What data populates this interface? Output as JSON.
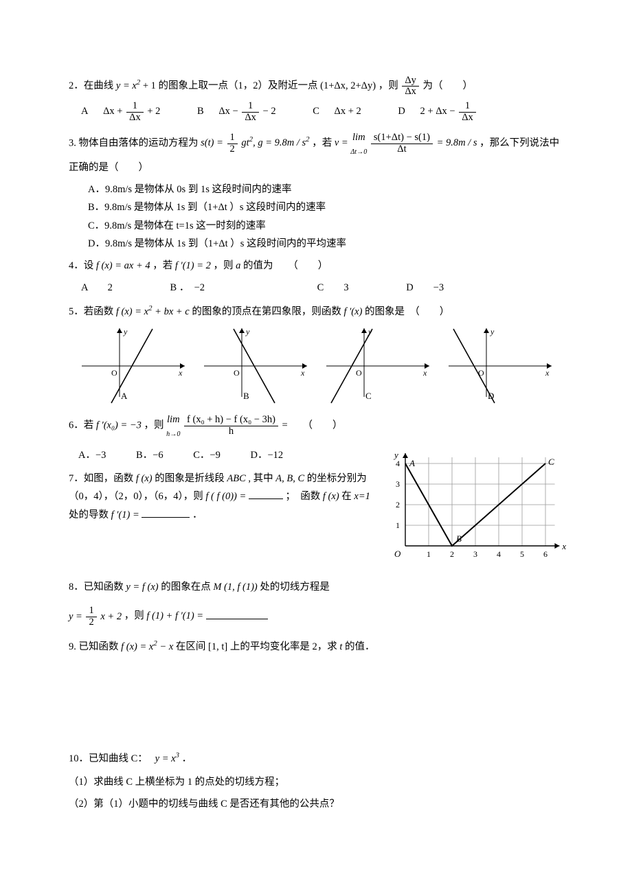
{
  "q2": {
    "text_a": "2．在曲线 ",
    "text_b": " 的图象上取一点（1，2）及附近一点 ",
    "text_c": " ，则 ",
    "text_d": " 为（　　）",
    "curve_lhs": "y",
    "curve_rhs_a": "x",
    "curve_sup": "2",
    "curve_tail": " + 1",
    "pt": "(1+Δx, 2+Δy)",
    "ratio_num": "Δy",
    "ratio_den": "Δx",
    "opts": {
      "A": "A",
      "A_rhs": "Δx + ",
      "A_frac_num": "1",
      "A_frac_den": "Δx",
      "A_tail": " + 2",
      "B": "B",
      "B_rhs": "Δx − ",
      "B_frac_num": "1",
      "B_frac_den": "Δx",
      "B_tail": " − 2",
      "C": "C",
      "C_rhs": "Δx + 2",
      "D": "D",
      "D_rhs": "2 + Δx − ",
      "D_frac_num": "1",
      "D_frac_den": "Δx"
    }
  },
  "q3": {
    "text_a": "3. 物体自由落体的运动方程为 ",
    "text_b": " ，若 ",
    "text_c": " ，那么下列说法中正确的是（　　）",
    "s_lhs": "s(t) = ",
    "s_frac_num": "1",
    "s_frac_den": "2",
    "s_tail": " gt",
    "s_sup": "2",
    "s_g": ", g = 9.8m / s",
    "lim_lhs": "v = ",
    "lim_sym": "lim",
    "lim_sub": "Δt→0",
    "lim_num": "s(1+Δt) − s(1)",
    "lim_den": "Δt",
    "lim_tail": " = 9.8m / s",
    "A": "A．9.8m/s 是物体从 0s 到 1s 这段时间内的速率",
    "B": "B．9.8m/s 是物体从 1s 到（1+Δt ）s 这段时间内的速率",
    "C": "C．9.8m/s 是物体在 t=1s 这一时刻的速率",
    "D": "D．9.8m/s 是物体从 1s 到（1+Δt ）s 这段时间内的平均速率"
  },
  "q4": {
    "text_a": "4．设 ",
    "eq": "f (x) = ax + 4",
    "text_b": " ，若 ",
    "cond": "f ′(1) = 2",
    "text_c": " ，则 ",
    "var": "a",
    "text_d": " 的值为　　（　　）",
    "A": "A　　2",
    "B": "B ．　−2",
    "C": "C　　3",
    "D": "D　　−3"
  },
  "q5": {
    "text_a": "5．若函数 ",
    "eq": "f (x) = x",
    "sup": "2",
    "eq_tail": " + bx + c",
    "text_b": " 的图象的顶点在第四象限，则函数 ",
    "der": "f ′(x)",
    "text_c": " 的图象是　（　　）",
    "labels": {
      "A": "A",
      "B": "B",
      "C": "C",
      "D": "D"
    },
    "axis": {
      "y": "y",
      "x": "x",
      "o": "O"
    },
    "diag": {
      "A": {
        "slope_sign": 1,
        "x_intercept_sign": 1
      },
      "B": {
        "slope_sign": -1,
        "x_intercept_sign": 1
      },
      "C": {
        "slope_sign": 1,
        "x_intercept_sign": -1
      },
      "D": {
        "slope_sign": -1,
        "x_intercept_sign": -1
      },
      "stroke": "#000000",
      "width": 1.4
    }
  },
  "q6": {
    "text_a": "6．若 ",
    "cond": "f ′(x₀) = −3",
    "text_b": " ，则 ",
    "lim_sym": "lim",
    "lim_sub": "h→0",
    "lim_num": "f (x₀ + h) − f (x₀ − 3h)",
    "lim_den": "h",
    "text_c": " =　　（　　）",
    "A": "A．−3",
    "B": "B．−6",
    "C": "C．−9",
    "D": "D．−12"
  },
  "q7": {
    "text_a": "7．如图，函数 ",
    "fx": "f (x)",
    "text_b": " 的图象是折线段 ",
    "abc": "ABC",
    "text_c": ", 其中 ",
    "abc2": "A, B, C",
    "text_d": " 的坐标分别为（0，4），（2，0），（6，4），则 ",
    "ff0": "f ( f (0)) = ",
    "text_e": "；　函数 ",
    "text_f": " 在 ",
    "xeq": "x=1",
    "text_g": " 处的导数 ",
    "fp1": "f ′(1) = ",
    "text_h": "．",
    "graph": {
      "xrange": [
        0,
        6
      ],
      "yrange": [
        0,
        4
      ],
      "points": {
        "A": [
          0,
          4
        ],
        "B": [
          2,
          0
        ],
        "C": [
          6,
          4
        ]
      },
      "grid_color": "#999999",
      "axis_color": "#000000",
      "line_color": "#000000",
      "xticks": [
        1,
        2,
        3,
        4,
        5,
        6
      ],
      "yticks": [
        1,
        2,
        3,
        4
      ],
      "axis": {
        "x": "x",
        "y": "y",
        "o": "O",
        "A": "A",
        "B": "B",
        "C": "C"
      }
    }
  },
  "q8": {
    "text_a": "8．已知函数 ",
    "yfx": "y = f (x)",
    "text_b": " 的图象在点 ",
    "pt": "M (1, f (1))",
    "text_c": " 处的切线方程是",
    "eq_pre": "y = ",
    "frac_num": "1",
    "frac_den": "2",
    "eq_tail": " x + 2",
    "text_d": " ，则 ",
    "sumeq": "f (1) + f ′(1) = "
  },
  "q9": {
    "text": "9. 已知函数 ",
    "eq": "f (x) = x",
    "sup": "2",
    "eq_tail": " − x",
    "text_b": " 在区间 [1, t] 上的平均变化率是 2，求 ",
    "var": "t",
    "text_c": " 的值．"
  },
  "q10": {
    "head": "10．已知曲线 C：　",
    "eq": "y = x",
    "sup": "3",
    "tail": " ．",
    "p1": "（1）求曲线 C 上横坐标为 1 的点处的切线方程；",
    "p2": "（2）第（1）小题中的切线与曲线 C 是否还有其他的公共点？"
  }
}
